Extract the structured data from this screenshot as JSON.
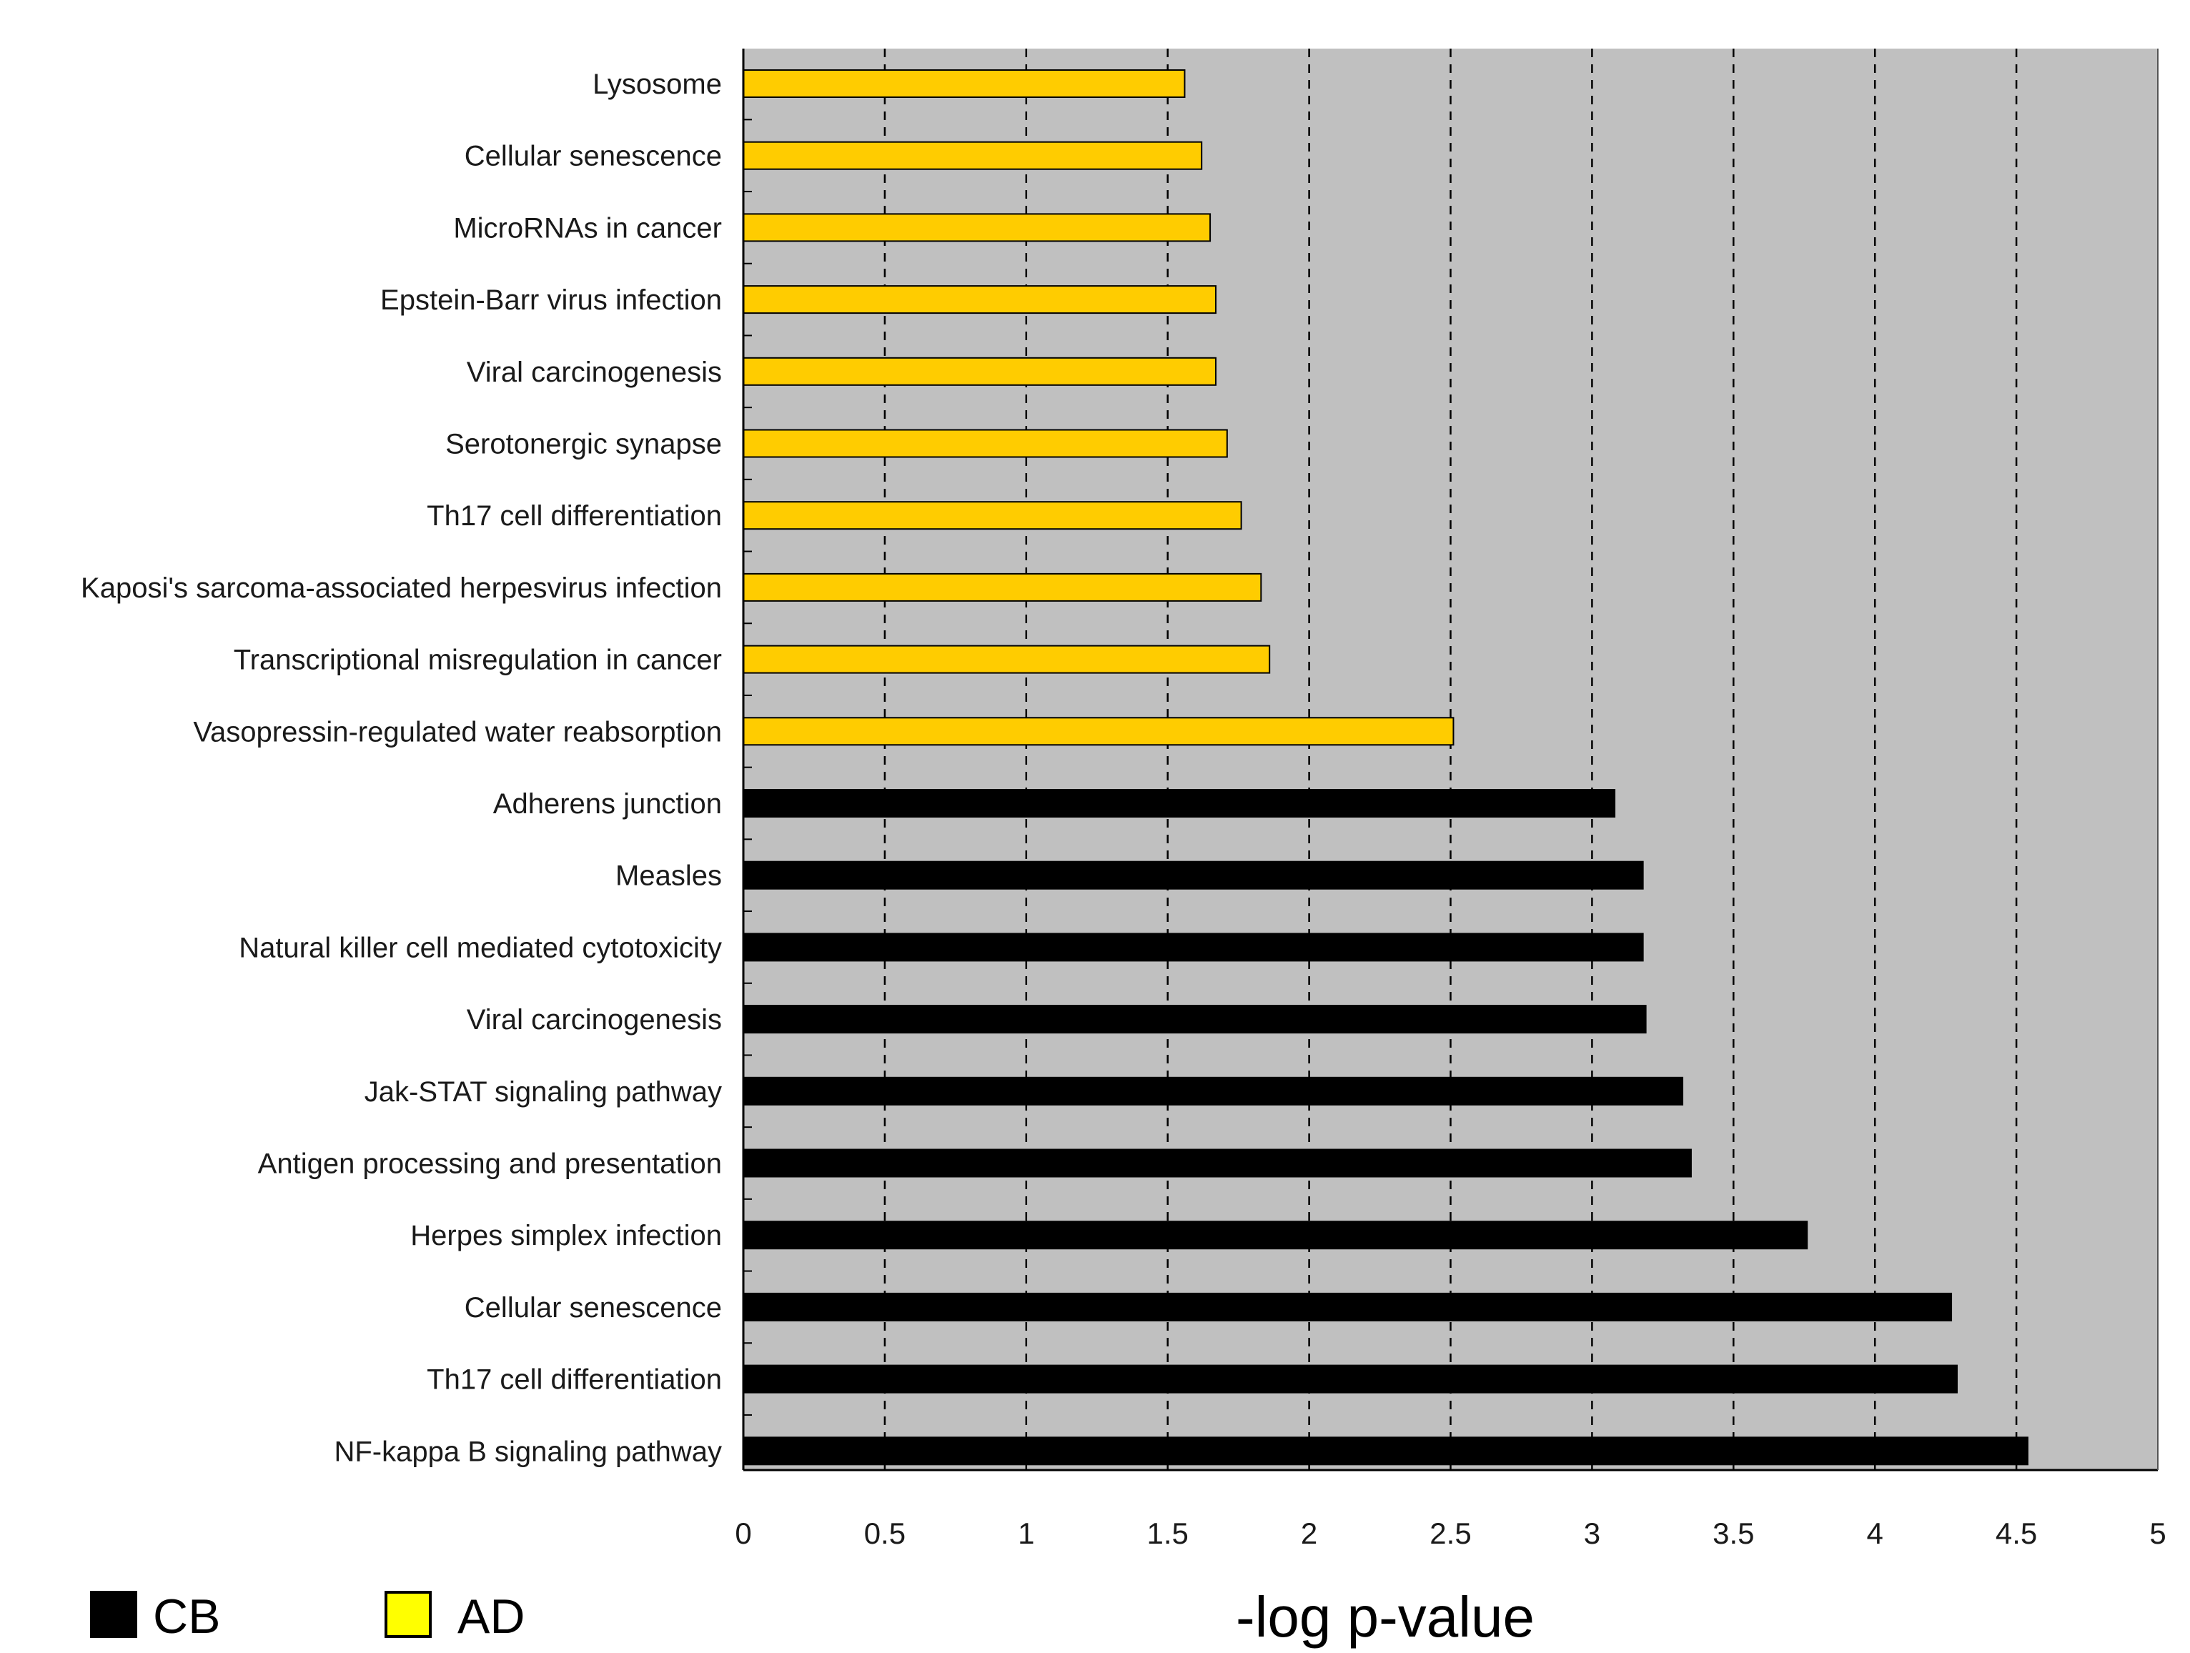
{
  "chart_data": {
    "type": "bar",
    "orientation": "horizontal",
    "xlabel": "-log p-value",
    "xlim": [
      0,
      5
    ],
    "xticks": [
      0,
      0.5,
      1,
      1.5,
      2,
      2.5,
      3,
      3.5,
      4,
      4.5,
      5
    ],
    "xtick_labels": [
      "0",
      "0.5",
      "1",
      "1.5",
      "2",
      "2.5",
      "3",
      "3.5",
      "4",
      "4.5",
      "5"
    ],
    "grid": "vertical dashed",
    "background": "#c0c0c0",
    "colors": {
      "CB": "#000000",
      "AD": "#ffcc00",
      "legend_AD": "#ffff00"
    },
    "legend": [
      {
        "name": "CB",
        "color": "#000000"
      },
      {
        "name": "AD",
        "color": "#ffff00"
      }
    ],
    "legend_position": "bottom-left",
    "bars": [
      {
        "label": "Lysosome",
        "group": "AD",
        "value": 1.56
      },
      {
        "label": "Cellular senescence",
        "group": "AD",
        "value": 1.62
      },
      {
        "label": "MicroRNAs in cancer",
        "group": "AD",
        "value": 1.65
      },
      {
        "label": "Epstein-Barr virus infection",
        "group": "AD",
        "value": 1.67
      },
      {
        "label": "Viral carcinogenesis",
        "group": "AD",
        "value": 1.67
      },
      {
        "label": "Serotonergic synapse",
        "group": "AD",
        "value": 1.71
      },
      {
        "label": "Th17 cell differentiation",
        "group": "AD",
        "value": 1.76
      },
      {
        "label": "Kaposi's sarcoma-associated herpesvirus infection",
        "group": "AD",
        "value": 1.83
      },
      {
        "label": "Transcriptional misregulation in cancer",
        "group": "AD",
        "value": 1.86
      },
      {
        "label": "Vasopressin-regulated water reabsorption",
        "group": "AD",
        "value": 2.51
      },
      {
        "label": "Adherens junction",
        "group": "CB",
        "value": 3.08
      },
      {
        "label": "Measles",
        "group": "CB",
        "value": 3.18
      },
      {
        "label": "Natural killer cell mediated cytotoxicity",
        "group": "CB",
        "value": 3.18
      },
      {
        "label": "Viral carcinogenesis",
        "group": "CB",
        "value": 3.19
      },
      {
        "label": "Jak-STAT signaling pathway",
        "group": "CB",
        "value": 3.32
      },
      {
        "label": "Antigen processing and presentation",
        "group": "CB",
        "value": 3.35
      },
      {
        "label": "Herpes simplex infection",
        "group": "CB",
        "value": 3.76
      },
      {
        "label": "Cellular senescence",
        "group": "CB",
        "value": 4.27
      },
      {
        "label": "Th17 cell differentiation",
        "group": "CB",
        "value": 4.29
      },
      {
        "label": "NF-kappa B signaling pathway",
        "group": "CB",
        "value": 4.54
      }
    ]
  }
}
